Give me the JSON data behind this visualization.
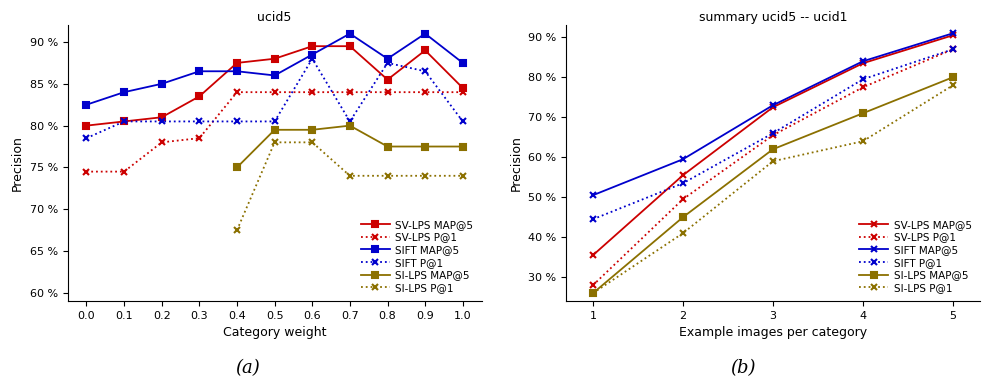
{
  "plot_a": {
    "title": "ucid5",
    "xlabel": "Category weight",
    "ylabel": "Precision",
    "xlim": [
      -0.05,
      1.05
    ],
    "ylim": [
      59,
      92
    ],
    "yticks": [
      60,
      65,
      70,
      75,
      80,
      85,
      90
    ],
    "xticks": [
      0,
      0.1,
      0.2,
      0.3,
      0.4,
      0.5,
      0.6,
      0.7,
      0.8,
      0.9,
      1.0
    ],
    "series": {
      "SV-LPS MAP@5": {
        "x": [
          0,
          0.1,
          0.2,
          0.3,
          0.4,
          0.5,
          0.6,
          0.7,
          0.8,
          0.9,
          1.0
        ],
        "y": [
          80.0,
          80.5,
          81.0,
          83.5,
          87.5,
          88.0,
          89.5,
          89.5,
          85.5,
          89.0,
          84.5
        ],
        "color": "#cc0000",
        "linestyle": "-",
        "marker": "s",
        "markersize": 4.5
      },
      "SV-LPS P@1": {
        "x": [
          0,
          0.1,
          0.2,
          0.3,
          0.4,
          0.5,
          0.6,
          0.7,
          0.8,
          0.9,
          1.0
        ],
        "y": [
          74.5,
          74.5,
          78.0,
          78.5,
          84.0,
          84.0,
          84.0,
          84.0,
          84.0,
          84.0,
          84.0
        ],
        "color": "#cc0000",
        "linestyle": ":",
        "marker": "x",
        "markersize": 5
      },
      "SIFT MAP@5": {
        "x": [
          0,
          0.1,
          0.2,
          0.3,
          0.4,
          0.5,
          0.6,
          0.7,
          0.8,
          0.9,
          1.0
        ],
        "y": [
          82.5,
          84.0,
          85.0,
          86.5,
          86.5,
          86.0,
          88.5,
          91.0,
          88.0,
          91.0,
          87.5
        ],
        "color": "#0000cc",
        "linestyle": "-",
        "marker": "s",
        "markersize": 4.5
      },
      "SIFT P@1": {
        "x": [
          0,
          0.1,
          0.2,
          0.3,
          0.4,
          0.5,
          0.6,
          0.7,
          0.8,
          0.9,
          1.0
        ],
        "y": [
          78.5,
          80.5,
          80.5,
          80.5,
          80.5,
          80.5,
          88.0,
          80.5,
          87.5,
          86.5,
          80.5
        ],
        "color": "#0000cc",
        "linestyle": ":",
        "marker": "x",
        "markersize": 5
      },
      "SI-LPS MAP@5": {
        "x": [
          0.4,
          0.5,
          0.6,
          0.7,
          0.8,
          0.9,
          1.0
        ],
        "y": [
          75.0,
          79.5,
          79.5,
          80.0,
          77.5,
          77.5,
          77.5
        ],
        "color": "#8b7000",
        "linestyle": "-",
        "marker": "s",
        "markersize": 4.5
      },
      "SI-LPS P@1": {
        "x": [
          0.4,
          0.5,
          0.6,
          0.7,
          0.8,
          0.9,
          1.0
        ],
        "y": [
          67.5,
          78.0,
          78.0,
          74.0,
          74.0,
          74.0,
          74.0
        ],
        "color": "#8b7000",
        "linestyle": ":",
        "marker": "x",
        "markersize": 5
      }
    },
    "legend_order": [
      "SV-LPS MAP@5",
      "SV-LPS P@1",
      "SIFT MAP@5",
      "SIFT P@1",
      "SI-LPS MAP@5",
      "SI-LPS P@1"
    ]
  },
  "plot_b": {
    "title": "summary ucid5 -- ucid1",
    "xlabel": "Example images per category",
    "ylabel": "Precision",
    "xlim": [
      0.7,
      5.3
    ],
    "ylim": [
      24,
      93
    ],
    "yticks": [
      30,
      40,
      50,
      60,
      70,
      80,
      90
    ],
    "xticks": [
      1,
      2,
      3,
      4,
      5
    ],
    "series": {
      "SV-LPS MAP@5": {
        "x": [
          1,
          2,
          3,
          4,
          5
        ],
        "y": [
          35.5,
          55.5,
          72.5,
          83.5,
          90.5
        ],
        "color": "#cc0000",
        "linestyle": "-",
        "marker": "x",
        "markersize": 5
      },
      "SV-LPS P@1": {
        "x": [
          1,
          2,
          3,
          4,
          5
        ],
        "y": [
          28.0,
          49.5,
          65.5,
          77.5,
          87.0
        ],
        "color": "#cc0000",
        "linestyle": ":",
        "marker": "x",
        "markersize": 5
      },
      "SIFT MAP@5": {
        "x": [
          1,
          2,
          3,
          4,
          5
        ],
        "y": [
          50.5,
          59.5,
          73.0,
          84.0,
          91.0
        ],
        "color": "#0000cc",
        "linestyle": "-",
        "marker": "x",
        "markersize": 5
      },
      "SIFT P@1": {
        "x": [
          1,
          2,
          3,
          4,
          5
        ],
        "y": [
          44.5,
          53.5,
          66.0,
          79.5,
          87.0
        ],
        "color": "#0000cc",
        "linestyle": ":",
        "marker": "x",
        "markersize": 5
      },
      "SI-LPS MAP@5": {
        "x": [
          1,
          2,
          3,
          4,
          5
        ],
        "y": [
          26.0,
          45.0,
          62.0,
          71.0,
          80.0
        ],
        "color": "#8b7000",
        "linestyle": "-",
        "marker": "s",
        "markersize": 4.5
      },
      "SI-LPS P@1": {
        "x": [
          1,
          2,
          3,
          4,
          5
        ],
        "y": [
          26.0,
          41.0,
          59.0,
          64.0,
          78.0
        ],
        "color": "#8b7000",
        "linestyle": ":",
        "marker": "x",
        "markersize": 5
      }
    },
    "legend_order": [
      "SV-LPS MAP@5",
      "SV-LPS P@1",
      "SIFT MAP@5",
      "SIFT P@1",
      "SI-LPS MAP@5",
      "SI-LPS P@1"
    ]
  },
  "label_a": "(a)",
  "label_b": "(b)",
  "bg_color": "#ffffff",
  "linewidth": 1.3
}
